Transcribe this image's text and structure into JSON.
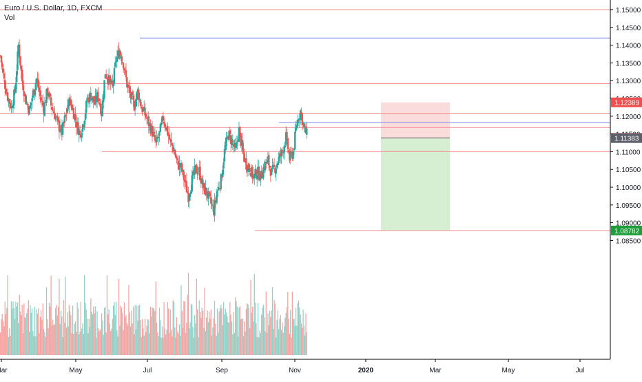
{
  "legend": {
    "title": "Euro / U.S. Dollar, 1D, FXCM",
    "volume_label": "Vol"
  },
  "colors": {
    "up": "#26a69a",
    "down": "#ef5350",
    "up_volume": "#8fd2c8",
    "down_volume": "#f5a3a1",
    "hline_red": "#f28b8b",
    "hline_blue": "#7b83ea",
    "stop_zone": "#fbdcdc",
    "target_zone": "#d6efd3",
    "axis_text": "#131722",
    "axis_line": "#000000"
  },
  "chart_data": {
    "type": "candlestick",
    "symbol": "Euro / U.S. Dollar",
    "timeframe": "1D",
    "source": "FXCM",
    "ylim": [
      1.083,
      1.152
    ],
    "x_axis_ticks": [
      "Mar",
      "May",
      "Jul",
      "Sep",
      "Nov",
      "2020",
      "Mar",
      "May",
      "Jul"
    ],
    "y_axis_ticks": [
      "1.15000",
      "1.14500",
      "1.14000",
      "1.13500",
      "1.13000",
      "1.12500",
      "1.12000",
      "1.11500",
      "1.11000",
      "1.10500",
      "1.10000",
      "1.09500",
      "1.09000",
      "1.08500"
    ],
    "price_labels": [
      {
        "value": "1.12389",
        "kind": "red"
      },
      {
        "value": "1.11389",
        "kind": "red"
      },
      {
        "value": "1.11383",
        "kind": "gray"
      },
      {
        "value": "1.08782",
        "kind": "green"
      }
    ],
    "horizontal_levels": [
      {
        "price": 1.15,
        "color": "red",
        "from": "Feb"
      },
      {
        "price": 1.142,
        "color": "blue",
        "from": "Jun"
      },
      {
        "price": 1.1292,
        "color": "red",
        "from": "Feb"
      },
      {
        "price": 1.1208,
        "color": "red",
        "from": "Feb"
      },
      {
        "price": 1.1182,
        "color": "blue",
        "from": "Oct"
      },
      {
        "price": 1.1168,
        "color": "red",
        "from": "Feb"
      },
      {
        "price": 1.11,
        "color": "red",
        "from": "Apr"
      },
      {
        "price": 1.0878,
        "color": "red",
        "from": "Sep"
      }
    ],
    "position": {
      "type": "short",
      "entry": 1.11389,
      "stop": 1.12389,
      "target": 1.08782
    },
    "price_path": [
      [
        0,
        1.137
      ],
      [
        4,
        1.13
      ],
      [
        8,
        1.1255
      ],
      [
        12,
        1.1225
      ],
      [
        16,
        1.127
      ],
      [
        20,
        1.14
      ],
      [
        24,
        1.13
      ],
      [
        28,
        1.1245
      ],
      [
        32,
        1.1215
      ],
      [
        36,
        1.1265
      ],
      [
        40,
        1.1305
      ],
      [
        44,
        1.1255
      ],
      [
        48,
        1.122
      ],
      [
        52,
        1.1275
      ],
      [
        56,
        1.123
      ],
      [
        60,
        1.1205
      ],
      [
        64,
        1.1175
      ],
      [
        68,
        1.1155
      ],
      [
        72,
        1.12
      ],
      [
        76,
        1.1245
      ],
      [
        80,
        1.122
      ],
      [
        84,
        1.118
      ],
      [
        88,
        1.115
      ],
      [
        92,
        1.1185
      ],
      [
        96,
        1.1245
      ],
      [
        100,
        1.126
      ],
      [
        104,
        1.1235
      ],
      [
        108,
        1.126
      ],
      [
        112,
        1.121
      ],
      [
        116,
        1.1325
      ],
      [
        120,
        1.13
      ],
      [
        124,
        1.128
      ],
      [
        128,
        1.136
      ],
      [
        132,
        1.1385
      ],
      [
        136,
        1.135
      ],
      [
        140,
        1.129
      ],
      [
        144,
        1.1255
      ],
      [
        148,
        1.123
      ],
      [
        152,
        1.127
      ],
      [
        156,
        1.1225
      ],
      [
        160,
        1.1205
      ],
      [
        164,
        1.118
      ],
      [
        168,
        1.1155
      ],
      [
        172,
        1.112
      ],
      [
        176,
        1.115
      ],
      [
        180,
        1.1195
      ],
      [
        184,
        1.1165
      ],
      [
        188,
        1.1125
      ],
      [
        192,
        1.1105
      ],
      [
        196,
        1.1065
      ],
      [
        200,
        1.1055
      ],
      [
        204,
        1.1015
      ],
      [
        208,
        1.0975
      ],
      [
        212,
        1.102
      ],
      [
        216,
        1.105
      ],
      [
        220,
        1.1045
      ],
      [
        224,
        1.1
      ],
      [
        228,
        1.0985
      ],
      [
        232,
        1.096
      ],
      [
        236,
        1.0935
      ],
      [
        240,
        1.099
      ],
      [
        244,
        1.102
      ],
      [
        248,
        1.11
      ],
      [
        252,
        1.115
      ],
      [
        256,
        1.113
      ],
      [
        260,
        1.11
      ],
      [
        264,
        1.116
      ],
      [
        268,
        1.11
      ],
      [
        272,
        1.1065
      ],
      [
        276,
        1.1055
      ],
      [
        280,
        1.1025
      ],
      [
        284,
        1.1045
      ],
      [
        288,
        1.103
      ],
      [
        292,
        1.106
      ],
      [
        296,
        1.1075
      ],
      [
        300,
        1.104
      ],
      [
        304,
        1.1055
      ],
      [
        308,
        1.108
      ],
      [
        312,
        1.11
      ],
      [
        316,
        1.114
      ],
      [
        320,
        1.108
      ],
      [
        324,
        1.11
      ],
      [
        328,
        1.118
      ],
      [
        332,
        1.1215
      ],
      [
        336,
        1.1165
      ],
      [
        340,
        1.1143
      ]
    ],
    "volume_note": "Volume histogram shown as relative bars beneath price"
  }
}
